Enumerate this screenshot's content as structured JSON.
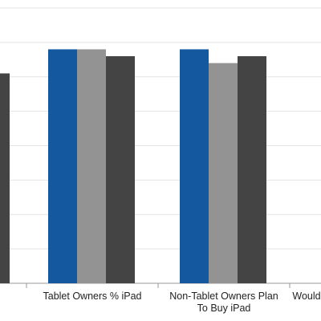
{
  "chart_data": {
    "type": "bar",
    "categories": [
      "",
      "Tablet Owners % iPad",
      "Non-Tablet Owners Plan\nTo Buy iPad",
      "Would"
    ],
    "series": [
      {
        "values": [
          null,
          68,
          68,
          null
        ],
        "color": "#1458a0"
      },
      {
        "values": [
          null,
          68,
          64,
          null
        ],
        "color": "#939393"
      },
      {
        "values": [
          61,
          66,
          66,
          null
        ],
        "color": "#444444"
      }
    ],
    "ylim": [
      0,
      80
    ],
    "grid": true,
    "legend": "none"
  }
}
